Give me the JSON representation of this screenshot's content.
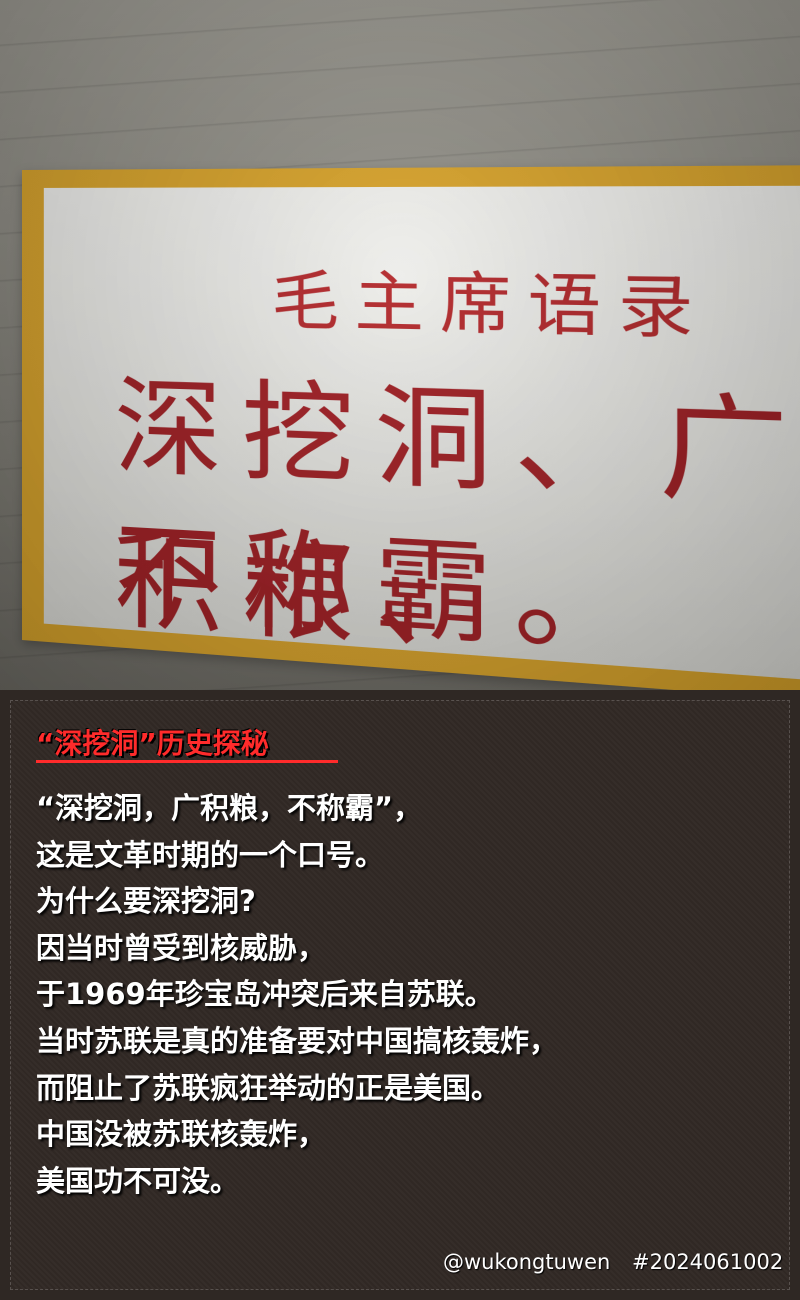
{
  "photo": {
    "sign_header": "毛主席语录",
    "sign_line1": "深挖洞、广积粮、",
    "sign_line2": "不称霸。",
    "colors": {
      "sign_border": "#d9a42b",
      "sign_text": "#a11f24",
      "wall": "#8f8d85"
    }
  },
  "caption": {
    "title": "“深挖洞”历史探秘",
    "lines": [
      "“深挖洞，广积粮，不称霸”，",
      "这是文革时期的一个口号。",
      "为什么要深挖洞?",
      "因当时曾受到核威胁，",
      "于1969年珍宝岛冲突后来自苏联。",
      "当时苏联是真的准备要对中国搞核轰炸，",
      "而阻止了苏联疯狂举动的正是美国。",
      "中国没被苏联核轰炸，",
      "美国功不可没。"
    ],
    "handle": "@wukongtuwen",
    "tag": "#2024061002",
    "colors": {
      "title": "#ff2b2b",
      "text": "#ffffff",
      "background": "#312925"
    }
  }
}
